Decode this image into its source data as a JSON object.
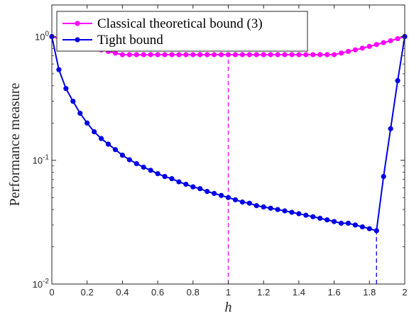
{
  "chart_data": {
    "type": "line",
    "xlabel": "h",
    "ylabel": "Performance measure",
    "xlim": [
      0,
      2
    ],
    "ylim": [
      0.01,
      1.8
    ],
    "yscale": "log",
    "grid": false,
    "legend_position": "top-left",
    "x_ticks": [
      "0",
      "0.2",
      "0.4",
      "0.6",
      "0.8",
      "1",
      "1.2",
      "1.4",
      "1.6",
      "1.8",
      "2"
    ],
    "y_ticks": [
      {
        "base": "10",
        "exp": "-2",
        "value": 0.01
      },
      {
        "base": "10",
        "exp": "-1",
        "value": 0.1
      },
      {
        "base": "10",
        "exp": "0",
        "value": 1
      }
    ],
    "series": [
      {
        "name": "Classical theoretical bound (3)",
        "color": "#ff00ff",
        "x": [
          0,
          0.04,
          0.08,
          0.12,
          0.16,
          0.2,
          0.24,
          0.28,
          0.32,
          0.36,
          0.4,
          0.44,
          0.48,
          0.52,
          0.56,
          0.6,
          0.64,
          0.68,
          0.72,
          0.76,
          0.8,
          0.84,
          0.88,
          0.92,
          0.96,
          1.0,
          1.04,
          1.08,
          1.12,
          1.16,
          1.2,
          1.24,
          1.28,
          1.32,
          1.36,
          1.4,
          1.44,
          1.48,
          1.52,
          1.56,
          1.6,
          1.64,
          1.68,
          1.72,
          1.76,
          1.8,
          1.84,
          1.88,
          1.92,
          1.96,
          2.0
        ],
        "y": [
          1.0,
          0.962,
          0.926,
          0.893,
          0.862,
          0.833,
          0.806,
          0.781,
          0.758,
          0.735,
          0.714,
          0.714,
          0.714,
          0.714,
          0.714,
          0.714,
          0.714,
          0.714,
          0.714,
          0.714,
          0.714,
          0.714,
          0.714,
          0.714,
          0.714,
          0.714,
          0.714,
          0.714,
          0.714,
          0.714,
          0.714,
          0.714,
          0.714,
          0.714,
          0.714,
          0.714,
          0.714,
          0.714,
          0.714,
          0.714,
          0.714,
          0.735,
          0.758,
          0.781,
          0.806,
          0.833,
          0.862,
          0.893,
          0.926,
          0.962,
          1.0
        ]
      },
      {
        "name": "Tight bound",
        "color": "#0000e6",
        "x": [
          0,
          0.04,
          0.08,
          0.12,
          0.16,
          0.2,
          0.24,
          0.28,
          0.32,
          0.36,
          0.4,
          0.44,
          0.48,
          0.52,
          0.56,
          0.6,
          0.64,
          0.68,
          0.72,
          0.76,
          0.8,
          0.84,
          0.88,
          0.92,
          0.96,
          1.0,
          1.04,
          1.08,
          1.12,
          1.16,
          1.2,
          1.24,
          1.28,
          1.32,
          1.36,
          1.4,
          1.44,
          1.48,
          1.52,
          1.56,
          1.6,
          1.64,
          1.68,
          1.72,
          1.76,
          1.8,
          1.84,
          1.88,
          1.92,
          1.96,
          2.0
        ],
        "y": [
          1.0,
          0.54,
          0.38,
          0.3,
          0.24,
          0.2,
          0.17,
          0.15,
          0.135,
          0.122,
          0.11,
          0.101,
          0.094,
          0.088,
          0.083,
          0.078,
          0.074,
          0.071,
          0.067,
          0.064,
          0.061,
          0.059,
          0.056,
          0.054,
          0.052,
          0.05,
          0.048,
          0.046,
          0.045,
          0.043,
          0.042,
          0.041,
          0.04,
          0.039,
          0.038,
          0.037,
          0.036,
          0.035,
          0.034,
          0.033,
          0.032,
          0.031,
          0.031,
          0.03,
          0.029,
          0.028,
          0.027,
          0.074,
          0.18,
          0.44,
          1.0
        ]
      }
    ],
    "reference_lines": [
      {
        "x": 1.0,
        "y_top": 0.714,
        "color": "#ff00ff",
        "style": "dashed"
      },
      {
        "x": 1.84,
        "y_top": 0.027,
        "color": "#0000e6",
        "style": "dashed"
      }
    ]
  }
}
